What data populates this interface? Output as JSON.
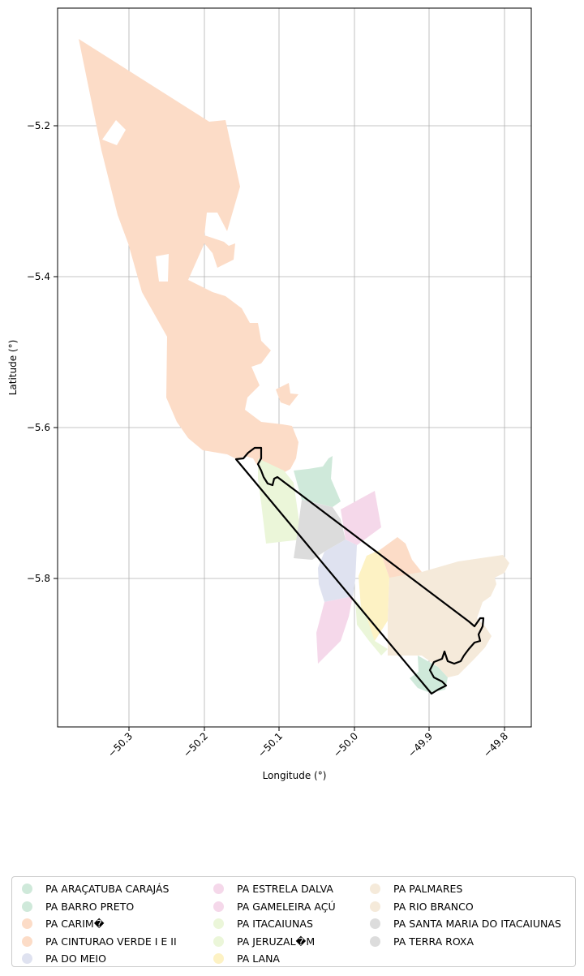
{
  "map": {
    "xlabel": "Longitude (°)",
    "ylabel": "Latitude (°)",
    "xlim": [
      -50.39,
      -49.76
    ],
    "ylim": [
      -5.996,
      -5.046
    ],
    "x_ticks": [
      "−50.3",
      "−50.2",
      "−50.1",
      "−50.0",
      "−49.9",
      "−49.8"
    ],
    "y_ticks": [
      "−5.2",
      "−5.4",
      "−5.6",
      "−5.8"
    ],
    "grid": true,
    "legend_position": "bottom",
    "outline_color": "#000000"
  },
  "legend": {
    "columns": [
      [
        {
          "label": "PA ARAÇATUBA CARAJÁS",
          "color": "#cfe9da"
        },
        {
          "label": "PA BARRO PRETO",
          "color": "#cfe9da"
        },
        {
          "label": "PA CARIM�",
          "color": "#fcdcc7"
        },
        {
          "label": "PA CINTURAO VERDE I E II",
          "color": "#fcdcc7"
        },
        {
          "label": "PA DO MEIO",
          "color": "#dfe2f0"
        }
      ],
      [
        {
          "label": "PA ESTRELA DALVA",
          "color": "#f5d8ea"
        },
        {
          "label": "PA GAMELEIRA AÇÚ",
          "color": "#f5d8ea"
        },
        {
          "label": "PA ITACAIUNAS",
          "color": "#ebf6d9"
        },
        {
          "label": "PA JERUZAL�M",
          "color": "#ebf6d9"
        },
        {
          "label": "PA LANA",
          "color": "#fdf2c4"
        }
      ],
      [
        {
          "label": "PA PALMARES",
          "color": "#f5eada"
        },
        {
          "label": "PA RIO BRANCO",
          "color": "#f5eada"
        },
        {
          "label": "PA SANTA MARIA DO ITACAIUNAS",
          "color": "#dcdcdc"
        },
        {
          "label": "PA TERRA ROXA",
          "color": "#dcdcdc"
        }
      ]
    ]
  }
}
